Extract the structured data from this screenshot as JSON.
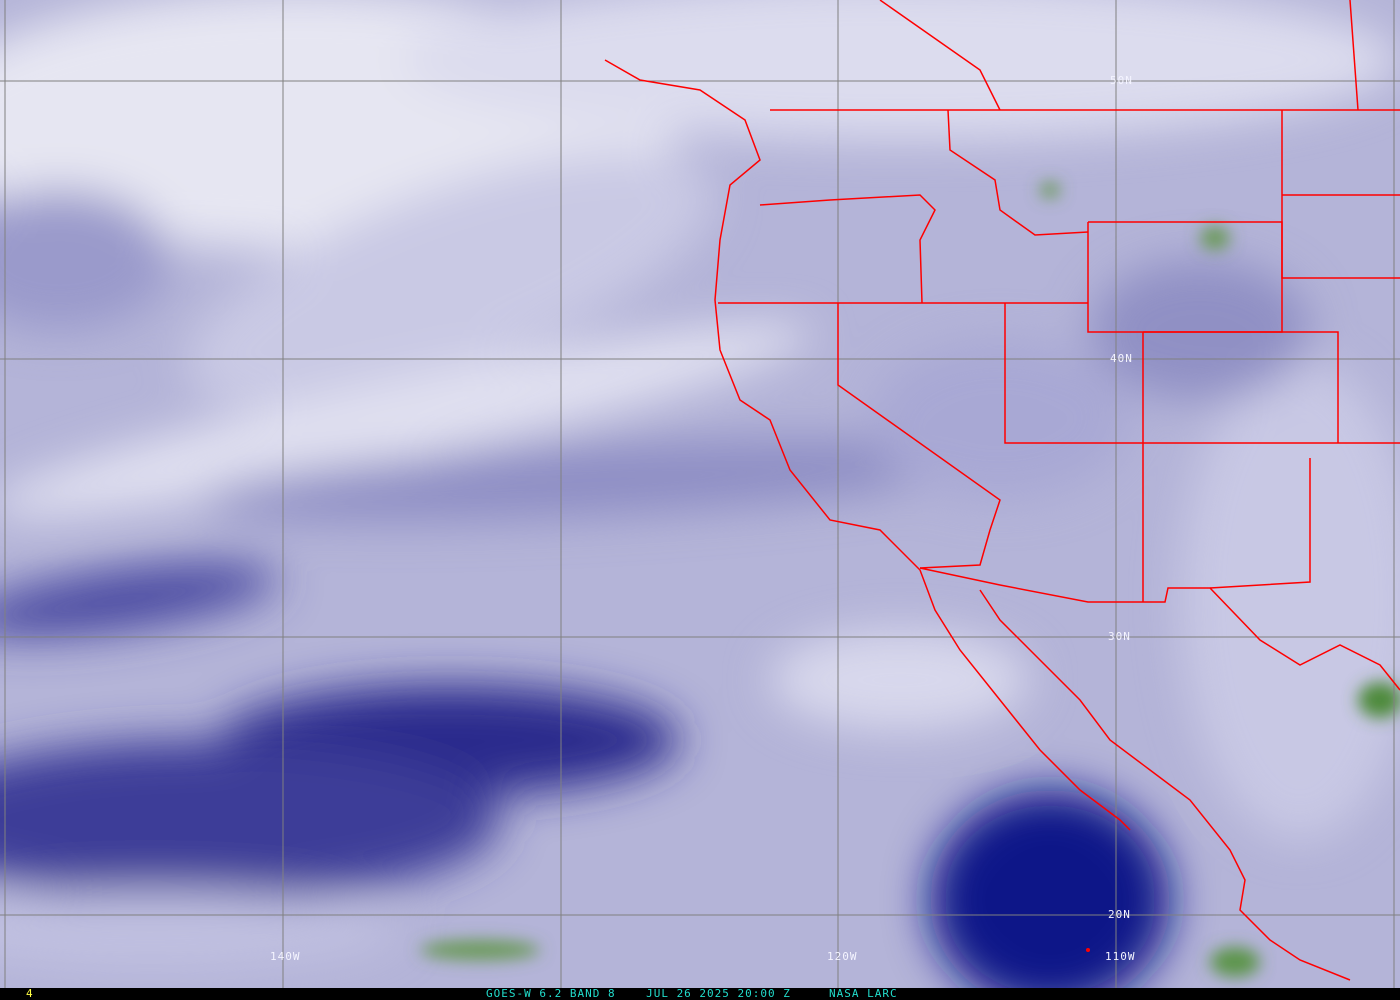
{
  "map": {
    "latitude_labels": [
      "50N",
      "40N",
      "30N",
      "20N"
    ],
    "longitude_labels": [
      "140W",
      "120W",
      "110W"
    ],
    "colors": {
      "border_lines": "#ff0000",
      "grid": "#808080",
      "dry_air": "#0b0f7a",
      "moist_air": "#e8e8f2",
      "cloud_tops": "#4e8a3a"
    }
  },
  "footer": {
    "frame_number": "4",
    "caption": "GOES-W 6.2 BAND 8    JUL 26 2025 20:00 Z     NASA LARC"
  }
}
